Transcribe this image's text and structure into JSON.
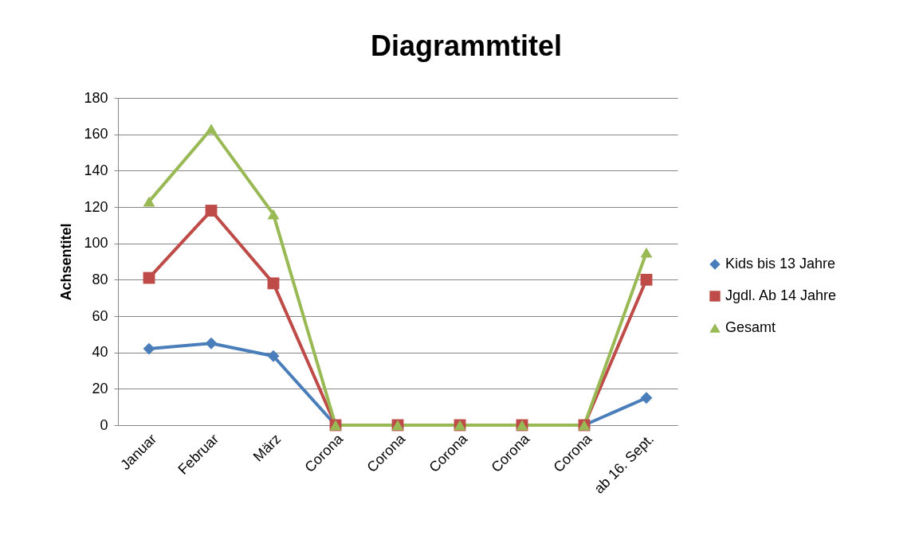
{
  "chart_data": {
    "type": "line",
    "title": "Diagrammtitel",
    "ylabel": "Achsentitel",
    "categories": [
      "Januar",
      "Februar",
      "März",
      "Corona",
      "Corona",
      "Corona",
      "Corona",
      "Corona",
      "ab 16. Sept."
    ],
    "series": [
      {
        "name": "Kids bis 13 Jahre",
        "color": "#4a7ebb",
        "marker": "diamond",
        "values": [
          42,
          45,
          38,
          0,
          0,
          0,
          0,
          0,
          15
        ]
      },
      {
        "name": "Jgdl. Ab 14 Jahre",
        "color": "#be4b48",
        "marker": "square",
        "values": [
          81,
          118,
          78,
          0,
          0,
          0,
          0,
          0,
          80
        ]
      },
      {
        "name": "Gesamt",
        "color": "#98b954",
        "marker": "triangle",
        "values": [
          123,
          163,
          116,
          0,
          0,
          0,
          0,
          0,
          95
        ]
      }
    ],
    "ylim": [
      0,
      180
    ],
    "yticks": [
      0,
      20,
      40,
      60,
      80,
      100,
      120,
      140,
      160,
      180
    ],
    "grid": "y",
    "legend": "right",
    "line_style": "solid"
  }
}
